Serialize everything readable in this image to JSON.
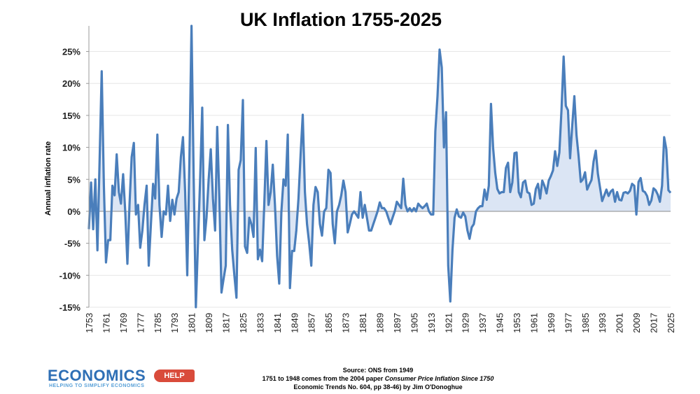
{
  "chart_data": {
    "type": "area",
    "title": "UK Inflation 1755-2025",
    "xlabel": "",
    "ylabel": "Annual inflation rate",
    "xlim": [
      1753,
      2025
    ],
    "ylim": [
      -0.15,
      0.29
    ],
    "yticks": [
      -0.15,
      -0.1,
      -0.05,
      0,
      0.05,
      0.1,
      0.15,
      0.2,
      0.25
    ],
    "ytick_labels": [
      "-15%",
      "-10%",
      "-5%",
      "0%",
      "5%",
      "10%",
      "15%",
      "20%",
      "25%"
    ],
    "xticks": [
      1753,
      1761,
      1769,
      1777,
      1785,
      1793,
      1801,
      1809,
      1817,
      1825,
      1833,
      1841,
      1849,
      1857,
      1865,
      1873,
      1881,
      1889,
      1897,
      1905,
      1913,
      1921,
      1929,
      1937,
      1945,
      1953,
      1961,
      1969,
      1977,
      1985,
      1993,
      2001,
      2009,
      2017,
      2025
    ],
    "grid": true,
    "series": [
      {
        "name": "Annual inflation rate",
        "color": "#4a7ebb",
        "fill": "#dbe5f4",
        "points": [
          [
            1753,
            -0.028
          ],
          [
            1754,
            0.045
          ],
          [
            1755,
            -0.028
          ],
          [
            1756,
            0.05
          ],
          [
            1757,
            -0.061
          ],
          [
            1758,
            0.08
          ],
          [
            1759,
            0.219
          ],
          [
            1760,
            0.04
          ],
          [
            1761,
            -0.08
          ],
          [
            1762,
            -0.045
          ],
          [
            1763,
            -0.045
          ],
          [
            1764,
            0.04
          ],
          [
            1765,
            0.025
          ],
          [
            1766,
            0.089
          ],
          [
            1767,
            0.03
          ],
          [
            1768,
            0.012
          ],
          [
            1769,
            0.058
          ],
          [
            1770,
            0.0
          ],
          [
            1771,
            -0.082
          ],
          [
            1772,
            0.01
          ],
          [
            1773,
            0.085
          ],
          [
            1774,
            0.107
          ],
          [
            1775,
            -0.005
          ],
          [
            1776,
            0.01
          ],
          [
            1777,
            -0.057
          ],
          [
            1778,
            -0.03
          ],
          [
            1779,
            0.01
          ],
          [
            1780,
            0.04
          ],
          [
            1781,
            -0.085
          ],
          [
            1782,
            -0.02
          ],
          [
            1783,
            0.043
          ],
          [
            1784,
            0.02
          ],
          [
            1785,
            0.12
          ],
          [
            1786,
            0.01
          ],
          [
            1787,
            -0.04
          ],
          [
            1788,
            0.0
          ],
          [
            1789,
            -0.005
          ],
          [
            1790,
            0.04
          ],
          [
            1791,
            -0.015
          ],
          [
            1792,
            0.018
          ],
          [
            1793,
            -0.005
          ],
          [
            1794,
            0.02
          ],
          [
            1795,
            0.03
          ],
          [
            1796,
            0.085
          ],
          [
            1797,
            0.116
          ],
          [
            1798,
            0.03
          ],
          [
            1799,
            -0.1
          ],
          [
            1800,
            0.08
          ],
          [
            1801,
            0.29
          ],
          [
            1802,
            0.05
          ],
          [
            1803,
            -0.15
          ],
          [
            1804,
            -0.05
          ],
          [
            1805,
            0.05
          ],
          [
            1806,
            0.162
          ],
          [
            1807,
            -0.045
          ],
          [
            1808,
            -0.01
          ],
          [
            1809,
            0.05
          ],
          [
            1810,
            0.097
          ],
          [
            1811,
            0.02
          ],
          [
            1812,
            -0.03
          ],
          [
            1813,
            0.132
          ],
          [
            1814,
            0.02
          ],
          [
            1815,
            -0.127
          ],
          [
            1816,
            -0.105
          ],
          [
            1817,
            -0.085
          ],
          [
            1818,
            0.135
          ],
          [
            1819,
            0.01
          ],
          [
            1820,
            -0.06
          ],
          [
            1821,
            -0.1
          ],
          [
            1822,
            -0.135
          ],
          [
            1823,
            0.065
          ],
          [
            1824,
            0.08
          ],
          [
            1825,
            0.174
          ],
          [
            1826,
            -0.055
          ],
          [
            1827,
            -0.065
          ],
          [
            1828,
            -0.01
          ],
          [
            1829,
            -0.02
          ],
          [
            1830,
            -0.04
          ],
          [
            1831,
            0.099
          ],
          [
            1832,
            -0.075
          ],
          [
            1833,
            -0.06
          ],
          [
            1834,
            -0.078
          ],
          [
            1835,
            0.01
          ],
          [
            1836,
            0.11
          ],
          [
            1837,
            0.01
          ],
          [
            1838,
            0.03
          ],
          [
            1839,
            0.073
          ],
          [
            1840,
            0.01
          ],
          [
            1841,
            -0.07
          ],
          [
            1842,
            -0.113
          ],
          [
            1843,
            0.0
          ],
          [
            1844,
            0.05
          ],
          [
            1845,
            0.04
          ],
          [
            1846,
            0.12
          ],
          [
            1847,
            -0.12
          ],
          [
            1848,
            -0.062
          ],
          [
            1849,
            -0.062
          ],
          [
            1850,
            -0.03
          ],
          [
            1851,
            0.02
          ],
          [
            1852,
            0.09
          ],
          [
            1853,
            0.151
          ],
          [
            1854,
            0.03
          ],
          [
            1855,
            -0.02
          ],
          [
            1856,
            -0.05
          ],
          [
            1857,
            -0.085
          ],
          [
            1858,
            0.01
          ],
          [
            1859,
            0.038
          ],
          [
            1860,
            0.03
          ],
          [
            1861,
            -0.02
          ],
          [
            1862,
            -0.038
          ],
          [
            1863,
            0.0
          ],
          [
            1864,
            0.005
          ],
          [
            1865,
            0.065
          ],
          [
            1866,
            0.06
          ],
          [
            1867,
            -0.02
          ],
          [
            1868,
            -0.05
          ],
          [
            1869,
            0.0
          ],
          [
            1870,
            0.01
          ],
          [
            1871,
            0.025
          ],
          [
            1872,
            0.048
          ],
          [
            1873,
            0.03
          ],
          [
            1874,
            -0.033
          ],
          [
            1875,
            -0.02
          ],
          [
            1876,
            -0.005
          ],
          [
            1877,
            0.0
          ],
          [
            1878,
            -0.005
          ],
          [
            1879,
            -0.01
          ],
          [
            1880,
            0.03
          ],
          [
            1881,
            -0.01
          ],
          [
            1882,
            0.01
          ],
          [
            1883,
            -0.01
          ],
          [
            1884,
            -0.03
          ],
          [
            1885,
            -0.03
          ],
          [
            1886,
            -0.02
          ],
          [
            1887,
            -0.01
          ],
          [
            1888,
            0.0
          ],
          [
            1889,
            0.014
          ],
          [
            1890,
            0.005
          ],
          [
            1891,
            0.005
          ],
          [
            1892,
            0.0
          ],
          [
            1893,
            -0.01
          ],
          [
            1894,
            -0.02
          ],
          [
            1895,
            -0.01
          ],
          [
            1896,
            0.0
          ],
          [
            1897,
            0.015
          ],
          [
            1898,
            0.01
          ],
          [
            1899,
            0.005
          ],
          [
            1900,
            0.051
          ],
          [
            1901,
            0.01
          ],
          [
            1902,
            0.0
          ],
          [
            1903,
            0.005
          ],
          [
            1904,
            0.0
          ],
          [
            1905,
            0.005
          ],
          [
            1906,
            0.0
          ],
          [
            1907,
            0.012
          ],
          [
            1908,
            0.008
          ],
          [
            1909,
            0.005
          ],
          [
            1910,
            0.008
          ],
          [
            1911,
            0.012
          ],
          [
            1912,
            0.0
          ],
          [
            1913,
            -0.005
          ],
          [
            1914,
            -0.005
          ],
          [
            1915,
            0.125
          ],
          [
            1916,
            0.18
          ],
          [
            1917,
            0.253
          ],
          [
            1918,
            0.225
          ],
          [
            1919,
            0.1
          ],
          [
            1920,
            0.155
          ],
          [
            1921,
            -0.085
          ],
          [
            1922,
            -0.141
          ],
          [
            1923,
            -0.06
          ],
          [
            1924,
            -0.01
          ],
          [
            1925,
            0.003
          ],
          [
            1926,
            -0.008
          ],
          [
            1927,
            -0.01
          ],
          [
            1928,
            -0.002
          ],
          [
            1929,
            -0.008
          ],
          [
            1930,
            -0.03
          ],
          [
            1931,
            -0.043
          ],
          [
            1932,
            -0.025
          ],
          [
            1933,
            -0.02
          ],
          [
            1934,
            0.0
          ],
          [
            1935,
            0.005
          ],
          [
            1936,
            0.008
          ],
          [
            1937,
            0.008
          ],
          [
            1938,
            0.034
          ],
          [
            1939,
            0.018
          ],
          [
            1940,
            0.04
          ],
          [
            1941,
            0.168
          ],
          [
            1942,
            0.1
          ],
          [
            1943,
            0.06
          ],
          [
            1944,
            0.035
          ],
          [
            1945,
            0.028
          ],
          [
            1946,
            0.03
          ],
          [
            1947,
            0.03
          ],
          [
            1948,
            0.068
          ],
          [
            1949,
            0.076
          ],
          [
            1950,
            0.03
          ],
          [
            1951,
            0.045
          ],
          [
            1952,
            0.091
          ],
          [
            1953,
            0.092
          ],
          [
            1954,
            0.03
          ],
          [
            1955,
            0.022
          ],
          [
            1956,
            0.045
          ],
          [
            1957,
            0.048
          ],
          [
            1958,
            0.03
          ],
          [
            1959,
            0.028
          ],
          [
            1960,
            0.01
          ],
          [
            1961,
            0.012
          ],
          [
            1962,
            0.035
          ],
          [
            1963,
            0.043
          ],
          [
            1964,
            0.02
          ],
          [
            1965,
            0.048
          ],
          [
            1966,
            0.04
          ],
          [
            1967,
            0.028
          ],
          [
            1968,
            0.048
          ],
          [
            1969,
            0.055
          ],
          [
            1970,
            0.064
          ],
          [
            1971,
            0.094
          ],
          [
            1972,
            0.071
          ],
          [
            1973,
            0.092
          ],
          [
            1974,
            0.16
          ],
          [
            1975,
            0.242
          ],
          [
            1976,
            0.165
          ],
          [
            1977,
            0.158
          ],
          [
            1978,
            0.083
          ],
          [
            1979,
            0.134
          ],
          [
            1980,
            0.18
          ],
          [
            1981,
            0.119
          ],
          [
            1982,
            0.086
          ],
          [
            1983,
            0.046
          ],
          [
            1984,
            0.05
          ],
          [
            1985,
            0.061
          ],
          [
            1986,
            0.034
          ],
          [
            1987,
            0.042
          ],
          [
            1988,
            0.049
          ],
          [
            1989,
            0.078
          ],
          [
            1990,
            0.095
          ],
          [
            1991,
            0.059
          ],
          [
            1992,
            0.037
          ],
          [
            1993,
            0.016
          ],
          [
            1994,
            0.025
          ],
          [
            1995,
            0.034
          ],
          [
            1996,
            0.024
          ],
          [
            1997,
            0.031
          ],
          [
            1998,
            0.034
          ],
          [
            1999,
            0.015
          ],
          [
            2000,
            0.03
          ],
          [
            2001,
            0.018
          ],
          [
            2002,
            0.017
          ],
          [
            2003,
            0.029
          ],
          [
            2004,
            0.03
          ],
          [
            2005,
            0.028
          ],
          [
            2006,
            0.032
          ],
          [
            2007,
            0.043
          ],
          [
            2008,
            0.04
          ],
          [
            2009,
            -0.005
          ],
          [
            2010,
            0.046
          ],
          [
            2011,
            0.052
          ],
          [
            2012,
            0.032
          ],
          [
            2013,
            0.03
          ],
          [
            2014,
            0.024
          ],
          [
            2015,
            0.01
          ],
          [
            2016,
            0.017
          ],
          [
            2017,
            0.036
          ],
          [
            2018,
            0.033
          ],
          [
            2019,
            0.026
          ],
          [
            2020,
            0.015
          ],
          [
            2021,
            0.04
          ],
          [
            2022,
            0.116
          ],
          [
            2023,
            0.097
          ],
          [
            2024,
            0.033
          ],
          [
            2025,
            0.029
          ]
        ]
      }
    ]
  },
  "footer": {
    "line1": "Source: ONS from 1949",
    "line2_prefix": "1751 to 1948 comes from the 2004 paper ",
    "line2_italic": "Consumer Price Inflation Since 1750",
    "line3": "Economic Trends No. 604, pp 38-46) by Jim O'Donoghue"
  },
  "logo": {
    "main": "ECONOMICS",
    "badge": "HELP",
    "tagline": "HELPING TO SIMPLIFY ECONOMICS"
  },
  "colors": {
    "line": "#4a7ebb",
    "fill": "#dbe5f4",
    "grid": "#e6e6e6",
    "axis": "#9a9a9a",
    "logo_blue": "#2e6fb5",
    "logo_red": "#d94b3b"
  }
}
